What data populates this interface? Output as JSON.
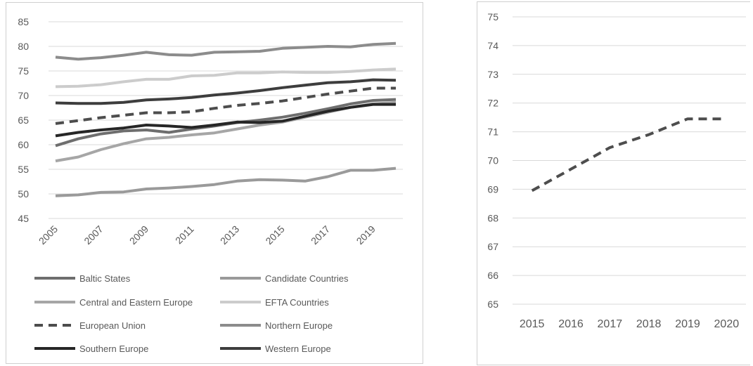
{
  "chart_data": [
    {
      "type": "line",
      "title": "",
      "xlabel": "",
      "ylabel": "",
      "ylim": [
        45,
        85
      ],
      "yticks": [
        45,
        50,
        55,
        60,
        65,
        70,
        75,
        80,
        85
      ],
      "x": [
        2005,
        2006,
        2007,
        2008,
        2009,
        2010,
        2011,
        2012,
        2013,
        2014,
        2015,
        2016,
        2017,
        2018,
        2019,
        2020
      ],
      "xtick_labels": [
        "2005",
        "2007",
        "2009",
        "2011",
        "2013",
        "2015",
        "2017",
        "2019"
      ],
      "grid": true,
      "legend_position": "bottom",
      "series": [
        {
          "name": "Baltic States",
          "color": "#6e6e6e",
          "dash": false,
          "values": [
            59.8,
            61.2,
            62.2,
            62.8,
            63.0,
            62.5,
            63.2,
            63.8,
            64.5,
            65.0,
            65.6,
            66.4,
            67.3,
            68.3,
            69.0,
            69.2
          ]
        },
        {
          "name": "Candidate Countries",
          "color": "#9a9a9a",
          "dash": false,
          "values": [
            49.6,
            49.8,
            50.3,
            50.4,
            51.0,
            51.2,
            51.5,
            51.9,
            52.6,
            52.9,
            52.8,
            52.6,
            53.5,
            54.8,
            54.8,
            55.2
          ]
        },
        {
          "name": "Central and Eastern Europe",
          "color": "#a6a6a6",
          "dash": false,
          "values": [
            56.7,
            57.5,
            59.0,
            60.2,
            61.2,
            61.5,
            62.0,
            62.4,
            63.2,
            64.0,
            64.6,
            65.6,
            66.6,
            67.6,
            68.3,
            68.6
          ]
        },
        {
          "name": "EFTA Countries",
          "color": "#cccccc",
          "dash": false,
          "values": [
            71.8,
            71.9,
            72.2,
            72.8,
            73.3,
            73.3,
            74.0,
            74.1,
            74.6,
            74.6,
            74.8,
            74.7,
            74.7,
            74.9,
            75.2,
            75.4
          ]
        },
        {
          "name": "European Union",
          "color": "#4d4d4d",
          "dash": true,
          "values": [
            64.3,
            64.9,
            65.5,
            66.0,
            66.5,
            66.5,
            66.7,
            67.4,
            68.0,
            68.4,
            68.9,
            69.6,
            70.3,
            70.9,
            71.5,
            71.5
          ]
        },
        {
          "name": "Northern Europe",
          "color": "#8c8c8c",
          "dash": false,
          "values": [
            77.8,
            77.4,
            77.7,
            78.2,
            78.8,
            78.3,
            78.2,
            78.8,
            78.9,
            79.0,
            79.6,
            79.8,
            80.0,
            79.9,
            80.4,
            80.6
          ]
        },
        {
          "name": "Southern Europe",
          "color": "#262626",
          "dash": false,
          "values": [
            61.8,
            62.5,
            63.0,
            63.4,
            64.0,
            63.8,
            63.5,
            64.0,
            64.6,
            64.5,
            64.8,
            65.8,
            66.8,
            67.6,
            68.2,
            68.2
          ]
        },
        {
          "name": "Western Europe",
          "color": "#3d3d3d",
          "dash": false,
          "values": [
            68.5,
            68.4,
            68.4,
            68.6,
            69.1,
            69.3,
            69.6,
            70.1,
            70.5,
            71.0,
            71.6,
            72.1,
            72.6,
            72.8,
            73.2,
            73.1
          ]
        }
      ]
    },
    {
      "type": "line",
      "title": "",
      "xlabel": "",
      "ylabel": "",
      "ylim": [
        65,
        75
      ],
      "yticks": [
        65,
        66,
        67,
        68,
        69,
        70,
        71,
        72,
        73,
        74,
        75
      ],
      "categories": [
        "2015",
        "2016",
        "2017",
        "2018",
        "2019",
        "2020"
      ],
      "grid": true,
      "series": [
        {
          "color": "#4d4d4d",
          "dash": true,
          "values": [
            68.95,
            69.7,
            70.45,
            70.9,
            71.45,
            71.45
          ]
        }
      ]
    }
  ]
}
